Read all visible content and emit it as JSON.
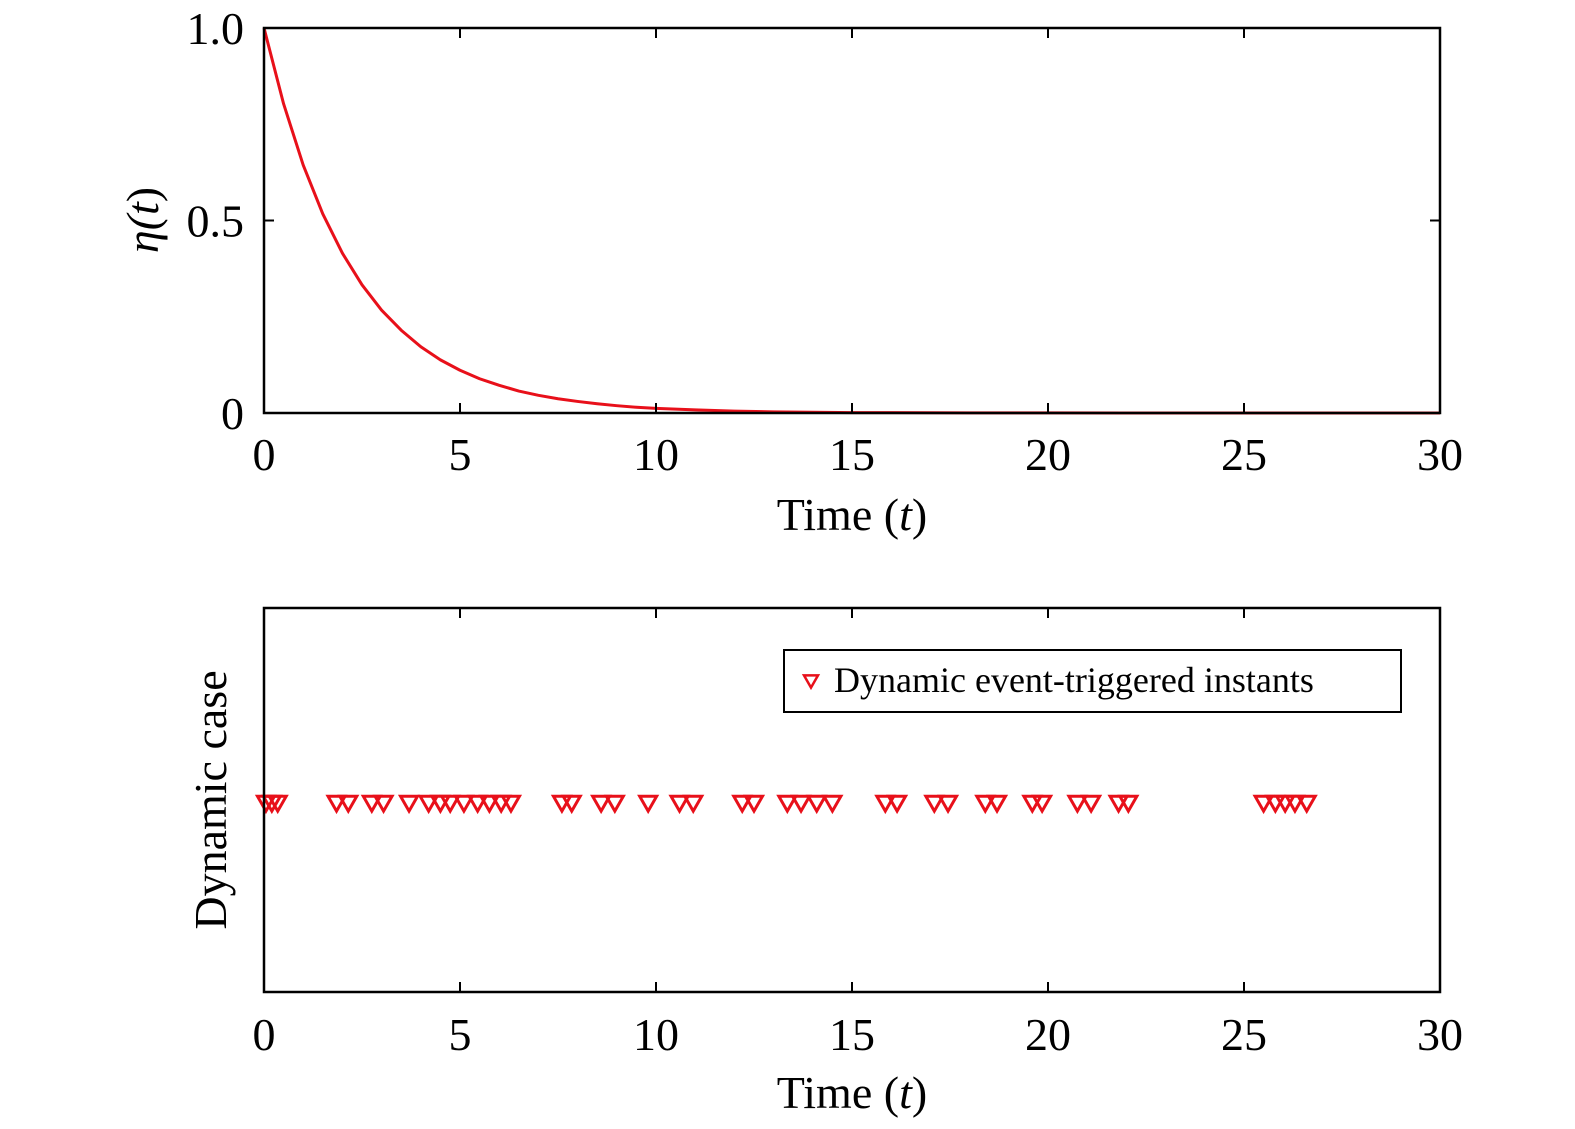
{
  "chart_data": [
    {
      "type": "line",
      "xlabel_prefix": "Time (",
      "xlabel_var": "t",
      "xlabel_suffix": ")",
      "ylabel_prefix": "η(",
      "ylabel_var": "t",
      "ylabel_suffix": ")",
      "xlim": [
        0,
        30
      ],
      "ylim": [
        0,
        1
      ],
      "xticks": [
        0,
        5,
        10,
        15,
        20,
        25,
        30
      ],
      "xtick_labels": [
        "0",
        "5",
        "10",
        "15",
        "20",
        "25",
        "30"
      ],
      "yticks": [
        0,
        0.5,
        1
      ],
      "ytick_labels": [
        "0",
        "0.5",
        "1.0"
      ],
      "grid": false,
      "series": [
        {
          "color": "#e8101a",
          "x": [
            0,
            0.5,
            1,
            1.5,
            2,
            2.5,
            3,
            3.5,
            4,
            4.5,
            5,
            5.5,
            6,
            6.5,
            7,
            7.5,
            8,
            8.5,
            9,
            9.5,
            10,
            11,
            12,
            13,
            14,
            15,
            16,
            17,
            18,
            19,
            20,
            22,
            24,
            26,
            28,
            30
          ],
          "y": [
            1.0,
            0.803,
            0.644,
            0.517,
            0.415,
            0.333,
            0.267,
            0.215,
            0.172,
            0.138,
            0.111,
            0.089,
            0.072,
            0.057,
            0.046,
            0.037,
            0.03,
            0.024,
            0.019,
            0.015,
            0.012,
            0.008,
            0.005,
            0.003,
            0.002,
            0.001,
            0.001,
            0.0005,
            0.0004,
            0.0002,
            0.0002,
            0.0001,
            0.0,
            0.0,
            0.0,
            0.0
          ]
        }
      ]
    },
    {
      "type": "scatter",
      "xlabel_prefix": "Time (",
      "xlabel_var": "t",
      "xlabel_suffix": ")",
      "ylabel": "Dynamic case",
      "xlim": [
        0,
        30
      ],
      "xticks": [
        0,
        5,
        10,
        15,
        20,
        25,
        30
      ],
      "xtick_labels": [
        "0",
        "5",
        "10",
        "15",
        "20",
        "25",
        "30"
      ],
      "grid": false,
      "legend_position": "top-right",
      "series": [
        {
          "name": "Dynamic event-triggered instants",
          "color": "#e8101a",
          "marker": "triangle-down",
          "x": [
            0.05,
            0.2,
            0.35,
            1.85,
            2.15,
            2.75,
            3.05,
            3.7,
            4.2,
            4.5,
            4.75,
            5.1,
            5.45,
            5.75,
            6.05,
            6.3,
            7.6,
            7.85,
            8.6,
            8.95,
            9.8,
            10.6,
            10.95,
            12.2,
            12.5,
            13.35,
            13.7,
            14.1,
            14.5,
            15.85,
            16.15,
            17.1,
            17.45,
            18.4,
            18.7,
            19.6,
            19.85,
            20.75,
            21.1,
            21.8,
            22.05,
            25.5,
            25.8,
            26.05,
            26.3,
            26.6
          ],
          "y": [
            1,
            1,
            1,
            1,
            1,
            1,
            1,
            1,
            1,
            1,
            1,
            1,
            1,
            1,
            1,
            1,
            1,
            1,
            1,
            1,
            1,
            1,
            1,
            1,
            1,
            1,
            1,
            1,
            1,
            1,
            1,
            1,
            1,
            1,
            1,
            1,
            1,
            1,
            1,
            1,
            1,
            1,
            1,
            1,
            1,
            1
          ]
        }
      ]
    }
  ]
}
